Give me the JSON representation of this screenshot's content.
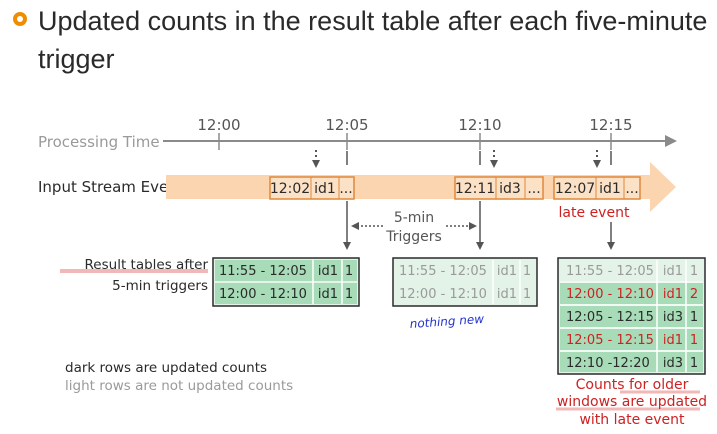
{
  "heading": "Updated counts in the result table after each five-minute trigger",
  "timeline": {
    "label": "Processing Time",
    "ticks": [
      "12:00",
      "12:05",
      "12:10",
      "12:15"
    ]
  },
  "stream": {
    "label": "Input Stream Events",
    "events": [
      {
        "time": "12:02",
        "id": "id1",
        "more": "..."
      },
      {
        "time": "12:11",
        "id": "id3",
        "more": "..."
      },
      {
        "time": "12:07",
        "id": "id1",
        "more": "..."
      }
    ],
    "late_label": "late event"
  },
  "triggers": {
    "line1": "5-min",
    "line2": "Triggers"
  },
  "result_label": {
    "line1": "Result tables after",
    "line2": "5-min triggers"
  },
  "tables": [
    {
      "rows": [
        {
          "window": "11:55 - 12:05",
          "id": "id1",
          "count": "1",
          "state": "dark"
        },
        {
          "window": "12:00 - 12:10",
          "id": "id1",
          "count": "1",
          "state": "dark"
        }
      ]
    },
    {
      "rows": [
        {
          "window": "11:55 - 12:05",
          "id": "id1",
          "count": "1",
          "state": "light"
        },
        {
          "window": "12:00 - 12:10",
          "id": "id1",
          "count": "1",
          "state": "light"
        }
      ]
    },
    {
      "rows": [
        {
          "window": "11:55 - 12:05",
          "id": "id1",
          "count": "1",
          "state": "light"
        },
        {
          "window": "12:00 - 12:10",
          "id": "id1",
          "count": "2",
          "state": "updated"
        },
        {
          "window": "12:05 - 12:15",
          "id": "id3",
          "count": "1",
          "state": "dark"
        },
        {
          "window": "12:05 - 12:15",
          "id": "id1",
          "count": "1",
          "state": "updated"
        },
        {
          "window": "12:10 -12:20",
          "id": "id3",
          "count": "1",
          "state": "dark"
        }
      ]
    }
  ],
  "nothing_new": "nothing new",
  "legend": {
    "dark": "dark rows are updated counts",
    "light": "light rows are not updated counts"
  },
  "note": {
    "line1": "Counts for older",
    "line2": "windows are updated",
    "line3": "with late event"
  },
  "colors": {
    "bullet": "#f08c00",
    "stream_band": "#fbd5b0",
    "event_box": "#fbe1c6",
    "event_border": "#e0893a",
    "table_dark": "#a8dcb8",
    "table_light": "#e3f3e8",
    "late_red": "#cc2222",
    "text": "#2a2a2a",
    "muted": "#9a9a9a"
  }
}
